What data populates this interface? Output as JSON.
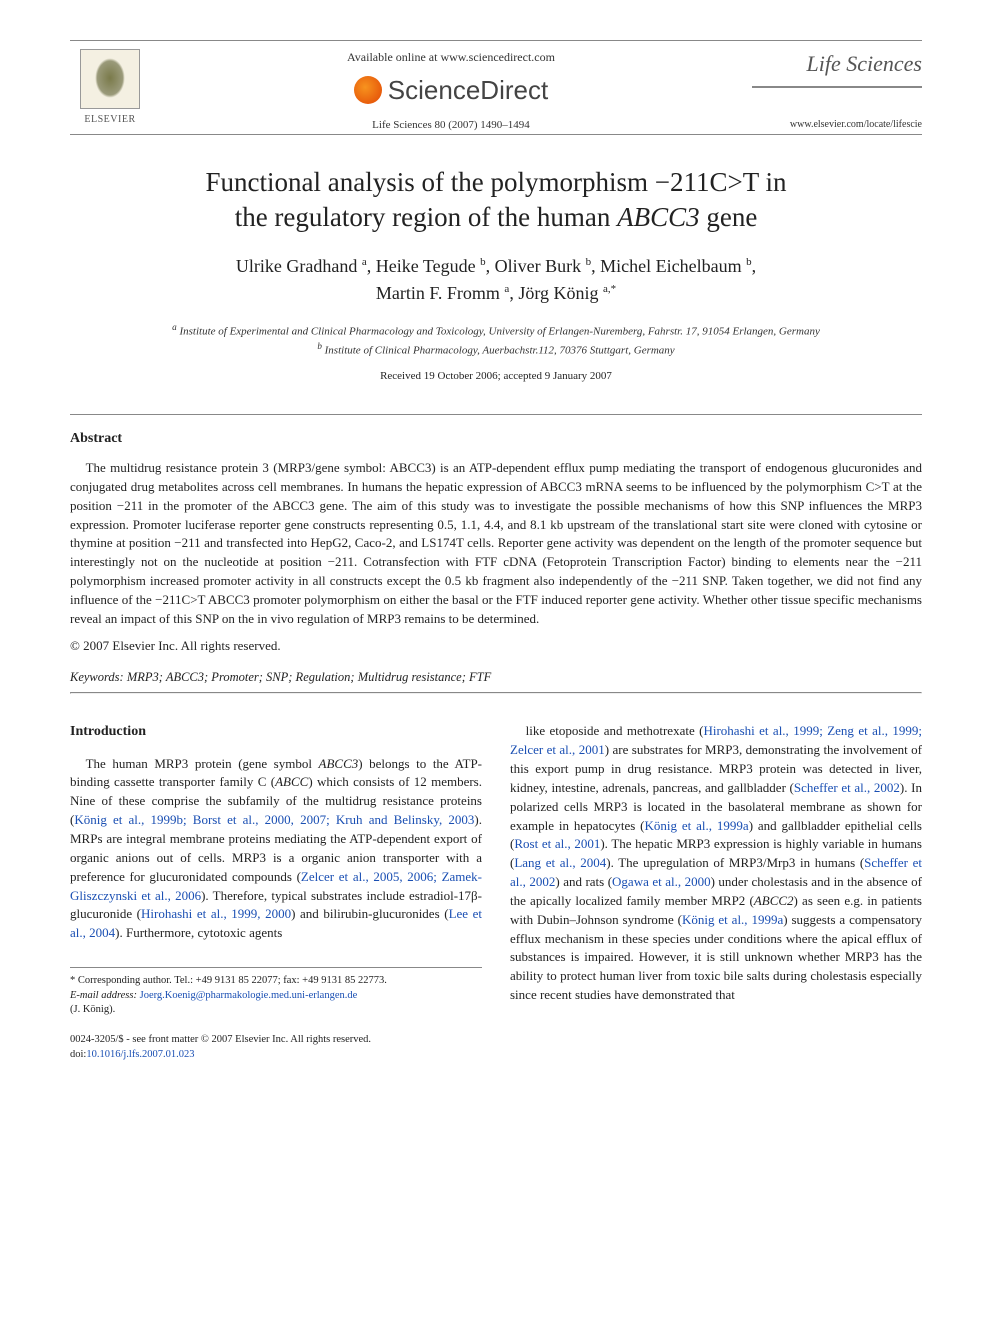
{
  "header": {
    "elsevier_brand": "ELSEVIER",
    "available_line": "Available online at www.sciencedirect.com",
    "sciencedirect_name": "ScienceDirect",
    "citation": "Life Sciences 80 (2007) 1490–1494",
    "journal_name": "Life Sciences",
    "journal_url": "www.elsevier.com/locate/lifescie"
  },
  "title": {
    "line1": "Functional analysis of the polymorphism −211C>T in",
    "line2_pre": "the regulatory region of the human ",
    "line2_gene": "ABCC3",
    "line2_post": " gene"
  },
  "authors": [
    {
      "name": "Ulrike Gradhand",
      "aff": "a"
    },
    {
      "name": "Heike Tegude",
      "aff": "b"
    },
    {
      "name": "Oliver Burk",
      "aff": "b"
    },
    {
      "name": "Michel Eichelbaum",
      "aff": "b"
    },
    {
      "name": "Martin F. Fromm",
      "aff": "a"
    },
    {
      "name": "Jörg König",
      "aff": "a,*"
    }
  ],
  "affiliations": {
    "a": "Institute of Experimental and Clinical Pharmacology and Toxicology, University of Erlangen-Nuremberg, Fahrstr. 17, 91054 Erlangen, Germany",
    "b": "Institute of Clinical Pharmacology, Auerbachstr.112, 70376 Stuttgart, Germany"
  },
  "dates": "Received 19 October 2006; accepted 9 January 2007",
  "abstract": {
    "heading": "Abstract",
    "body": "The multidrug resistance protein 3 (MRP3/gene symbol: ABCC3) is an ATP-dependent efflux pump mediating the transport of endogenous glucuronides and conjugated drug metabolites across cell membranes. In humans the hepatic expression of ABCC3 mRNA seems to be influenced by the polymorphism C>T at the position −211 in the promoter of the ABCC3 gene. The aim of this study was to investigate the possible mechanisms of how this SNP influences the MRP3 expression. Promoter luciferase reporter gene constructs representing 0.5, 1.1, 4.4, and 8.1 kb upstream of the translational start site were cloned with cytosine or thymine at position −211 and transfected into HepG2, Caco-2, and LS174T cells. Reporter gene activity was dependent on the length of the promoter sequence but interestingly not on the nucleotide at position −211. Cotransfection with FTF cDNA (Fetoprotein Transcription Factor) binding to elements near the −211 polymorphism increased promoter activity in all constructs except the 0.5 kb fragment also independently of the −211 SNP. Taken together, we did not find any influence of the −211C>T ABCC3 promoter polymorphism on either the basal or the FTF induced reporter gene activity. Whether other tissue specific mechanisms reveal an impact of this SNP on the in vivo regulation of MRP3 remains to be determined.",
    "copyright": "© 2007 Elsevier Inc. All rights reserved."
  },
  "keywords": {
    "label": "Keywords:",
    "list": "MRP3; ABCC3; Promoter; SNP; Regulation; Multidrug resistance; FTF"
  },
  "introduction": {
    "heading": "Introduction",
    "left_paragraph": "The human MRP3 protein (gene symbol ABCC3) belongs to the ATP-binding cassette transporter family C (ABCC) which consists of 12 members. Nine of these comprise the subfamily of the multidrug resistance proteins (König et al., 1999b; Borst et al., 2000, 2007; Kruh and Belinsky, 2003). MRPs are integral membrane proteins mediating the ATP-dependent export of organic anions out of cells. MRP3 is a organic anion transporter with a preference for glucuronidated compounds (Zelcer et al., 2005, 2006; Zamek-Gliszczynski et al., 2006). Therefore, typical substrates include estradiol-17β-glucuronide (Hirohashi et al., 1999, 2000) and bilirubin-glucuronides (Lee et al., 2004). Furthermore, cytotoxic agents",
    "right_paragraph": "like etoposide and methotrexate (Hirohashi et al., 1999; Zeng et al., 1999; Zelcer et al., 2001) are substrates for MRP3, demonstrating the involvement of this export pump in drug resistance. MRP3 protein was detected in liver, kidney, intestine, adrenals, pancreas, and gallbladder (Scheffer et al., 2002). In polarized cells MRP3 is located in the basolateral membrane as shown for example in hepatocytes (König et al., 1999a) and gallbladder epithelial cells (Rost et al., 2001). The hepatic MRP3 expression is highly variable in humans (Lang et al., 2004). The upregulation of MRP3/Mrp3 in humans (Scheffer et al., 2002) and rats (Ogawa et al., 2000) under cholestasis and in the absence of the apically localized family member MRP2 (ABCC2) as seen e.g. in patients with Dubin–Johnson syndrome (König et al., 1999a) suggests a compensatory efflux mechanism in these species under conditions where the apical efflux of substances is impaired. However, it is still unknown whether MRP3 has the ability to protect human liver from toxic bile salts during cholestasis especially since recent studies have demonstrated that"
  },
  "footnotes": {
    "corresponding": "* Corresponding author. Tel.: +49 9131 85 22077; fax: +49 9131 85 22773.",
    "email_label": "E-mail address:",
    "email": "Joerg.Koenig@pharmakologie.med.uni-erlangen.de",
    "email_person": "(J. König)."
  },
  "footer": {
    "issn_line": "0024-3205/$ - see front matter © 2007 Elsevier Inc. All rights reserved.",
    "doi_label": "doi:",
    "doi": "10.1016/j.lfs.2007.01.023"
  },
  "colors": {
    "text": "#222222",
    "cite_link": "#1a4fb3",
    "rule": "#888888",
    "sd_orange": "#e85d0c"
  }
}
